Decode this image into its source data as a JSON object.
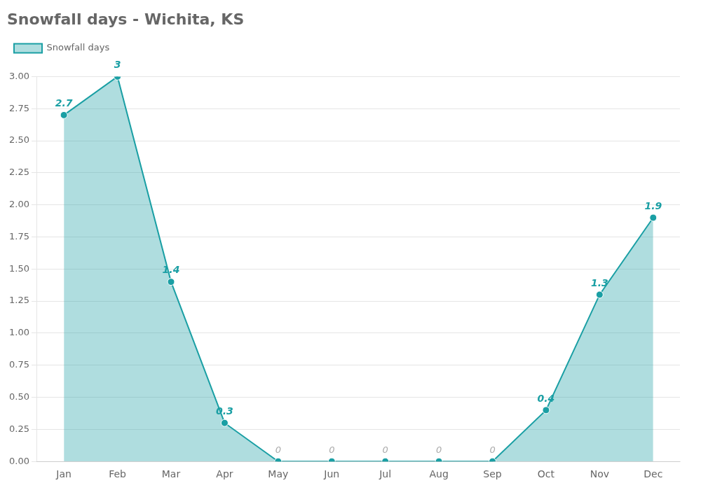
{
  "chart_data": {
    "type": "line",
    "title": "Snowfall days - Wichita, KS",
    "categories": [
      "Jan",
      "Feb",
      "Mar",
      "Apr",
      "May",
      "Jun",
      "Jul",
      "Aug",
      "Sep",
      "Oct",
      "Nov",
      "Dec"
    ],
    "series": [
      {
        "name": "Snowfall days",
        "color": "#1a9fa4",
        "marker": "circle",
        "values": [
          2.7,
          3.0,
          1.4,
          0.3,
          0,
          0,
          0,
          0,
          0,
          0.4,
          1.3,
          1.9
        ]
      }
    ],
    "ylim": [
      0,
      3.0
    ],
    "yticks": [
      {
        "value": 0,
        "label": "0.00"
      },
      0.25,
      {
        "value": 0.5,
        "label": "0.50"
      },
      0.75,
      {
        "value": 1,
        "label": "1.00"
      },
      1.25,
      {
        "value": 1.5,
        "label": "1.50"
      },
      1.75,
      {
        "value": 2,
        "label": "2.00"
      },
      2.25,
      {
        "value": 2.5,
        "label": "2.50"
      },
      2.75,
      {
        "value": 3,
        "label": "3.00"
      }
    ],
    "grid": true,
    "legend": "upper left",
    "data_labels": true
  }
}
